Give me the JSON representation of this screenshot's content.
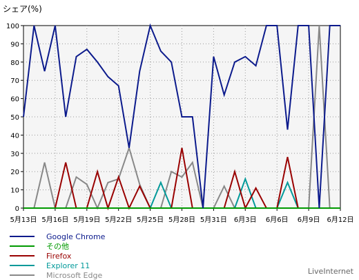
{
  "chart_data": {
    "type": "line",
    "ylabel": "シェア(%)",
    "ylim": [
      0,
      100
    ],
    "yticks": [
      0,
      10,
      20,
      30,
      40,
      50,
      60,
      70,
      80,
      90,
      100
    ],
    "grid": true,
    "legend_position": "bottom-left",
    "x_tick_labels": [
      "5月13日",
      "5月16日",
      "5月19日",
      "5月22日",
      "5月25日",
      "5月28日",
      "5月31日",
      "6月3日",
      "6月6日",
      "6月9日",
      "6月12日"
    ],
    "x_tick_indices": [
      0,
      3,
      6,
      9,
      12,
      15,
      18,
      21,
      24,
      27,
      30
    ],
    "series": [
      {
        "name": "Google Chrome",
        "color": "#0b1a8c",
        "values": [
          50,
          100,
          75,
          100,
          50,
          83,
          87,
          80,
          72,
          67,
          33,
          75,
          100,
          86,
          80,
          50,
          50,
          0,
          83,
          62,
          80,
          83,
          78,
          100,
          100,
          43,
          100,
          100,
          0,
          100,
          100
        ]
      },
      {
        "name": "その他",
        "color": "#009900",
        "values": [
          0,
          0,
          0,
          0,
          0,
          0,
          0,
          0,
          0,
          0,
          0,
          0,
          0,
          0,
          0,
          0,
          0,
          0,
          0,
          0,
          0,
          0,
          0,
          0,
          0,
          0,
          0,
          0,
          0,
          0,
          0
        ]
      },
      {
        "name": "Firefox",
        "color": "#990000",
        "values": [
          0,
          0,
          0,
          0,
          25,
          0,
          0,
          20,
          0,
          17,
          0,
          12,
          0,
          0,
          0,
          33,
          0,
          0,
          0,
          0,
          20,
          0,
          11,
          0,
          0,
          28,
          0,
          0,
          0,
          0,
          0
        ]
      },
      {
        "name": "Explorer 11",
        "color": "#009999",
        "values": [
          0,
          0,
          0,
          0,
          0,
          0,
          0,
          0,
          0,
          0,
          0,
          0,
          0,
          14,
          0,
          0,
          0,
          0,
          0,
          0,
          0,
          16,
          0,
          0,
          0,
          14,
          0,
          0,
          0,
          0,
          0
        ]
      },
      {
        "name": "Microsoft Edge",
        "color": "#888888",
        "values": [
          0,
          0,
          25,
          0,
          0,
          17,
          13,
          0,
          14,
          16,
          33,
          13,
          0,
          0,
          20,
          17,
          25,
          0,
          0,
          12,
          0,
          0,
          0,
          0,
          0,
          0,
          0,
          0,
          100,
          0,
          0
        ]
      }
    ]
  },
  "credit": "LiveInternet"
}
